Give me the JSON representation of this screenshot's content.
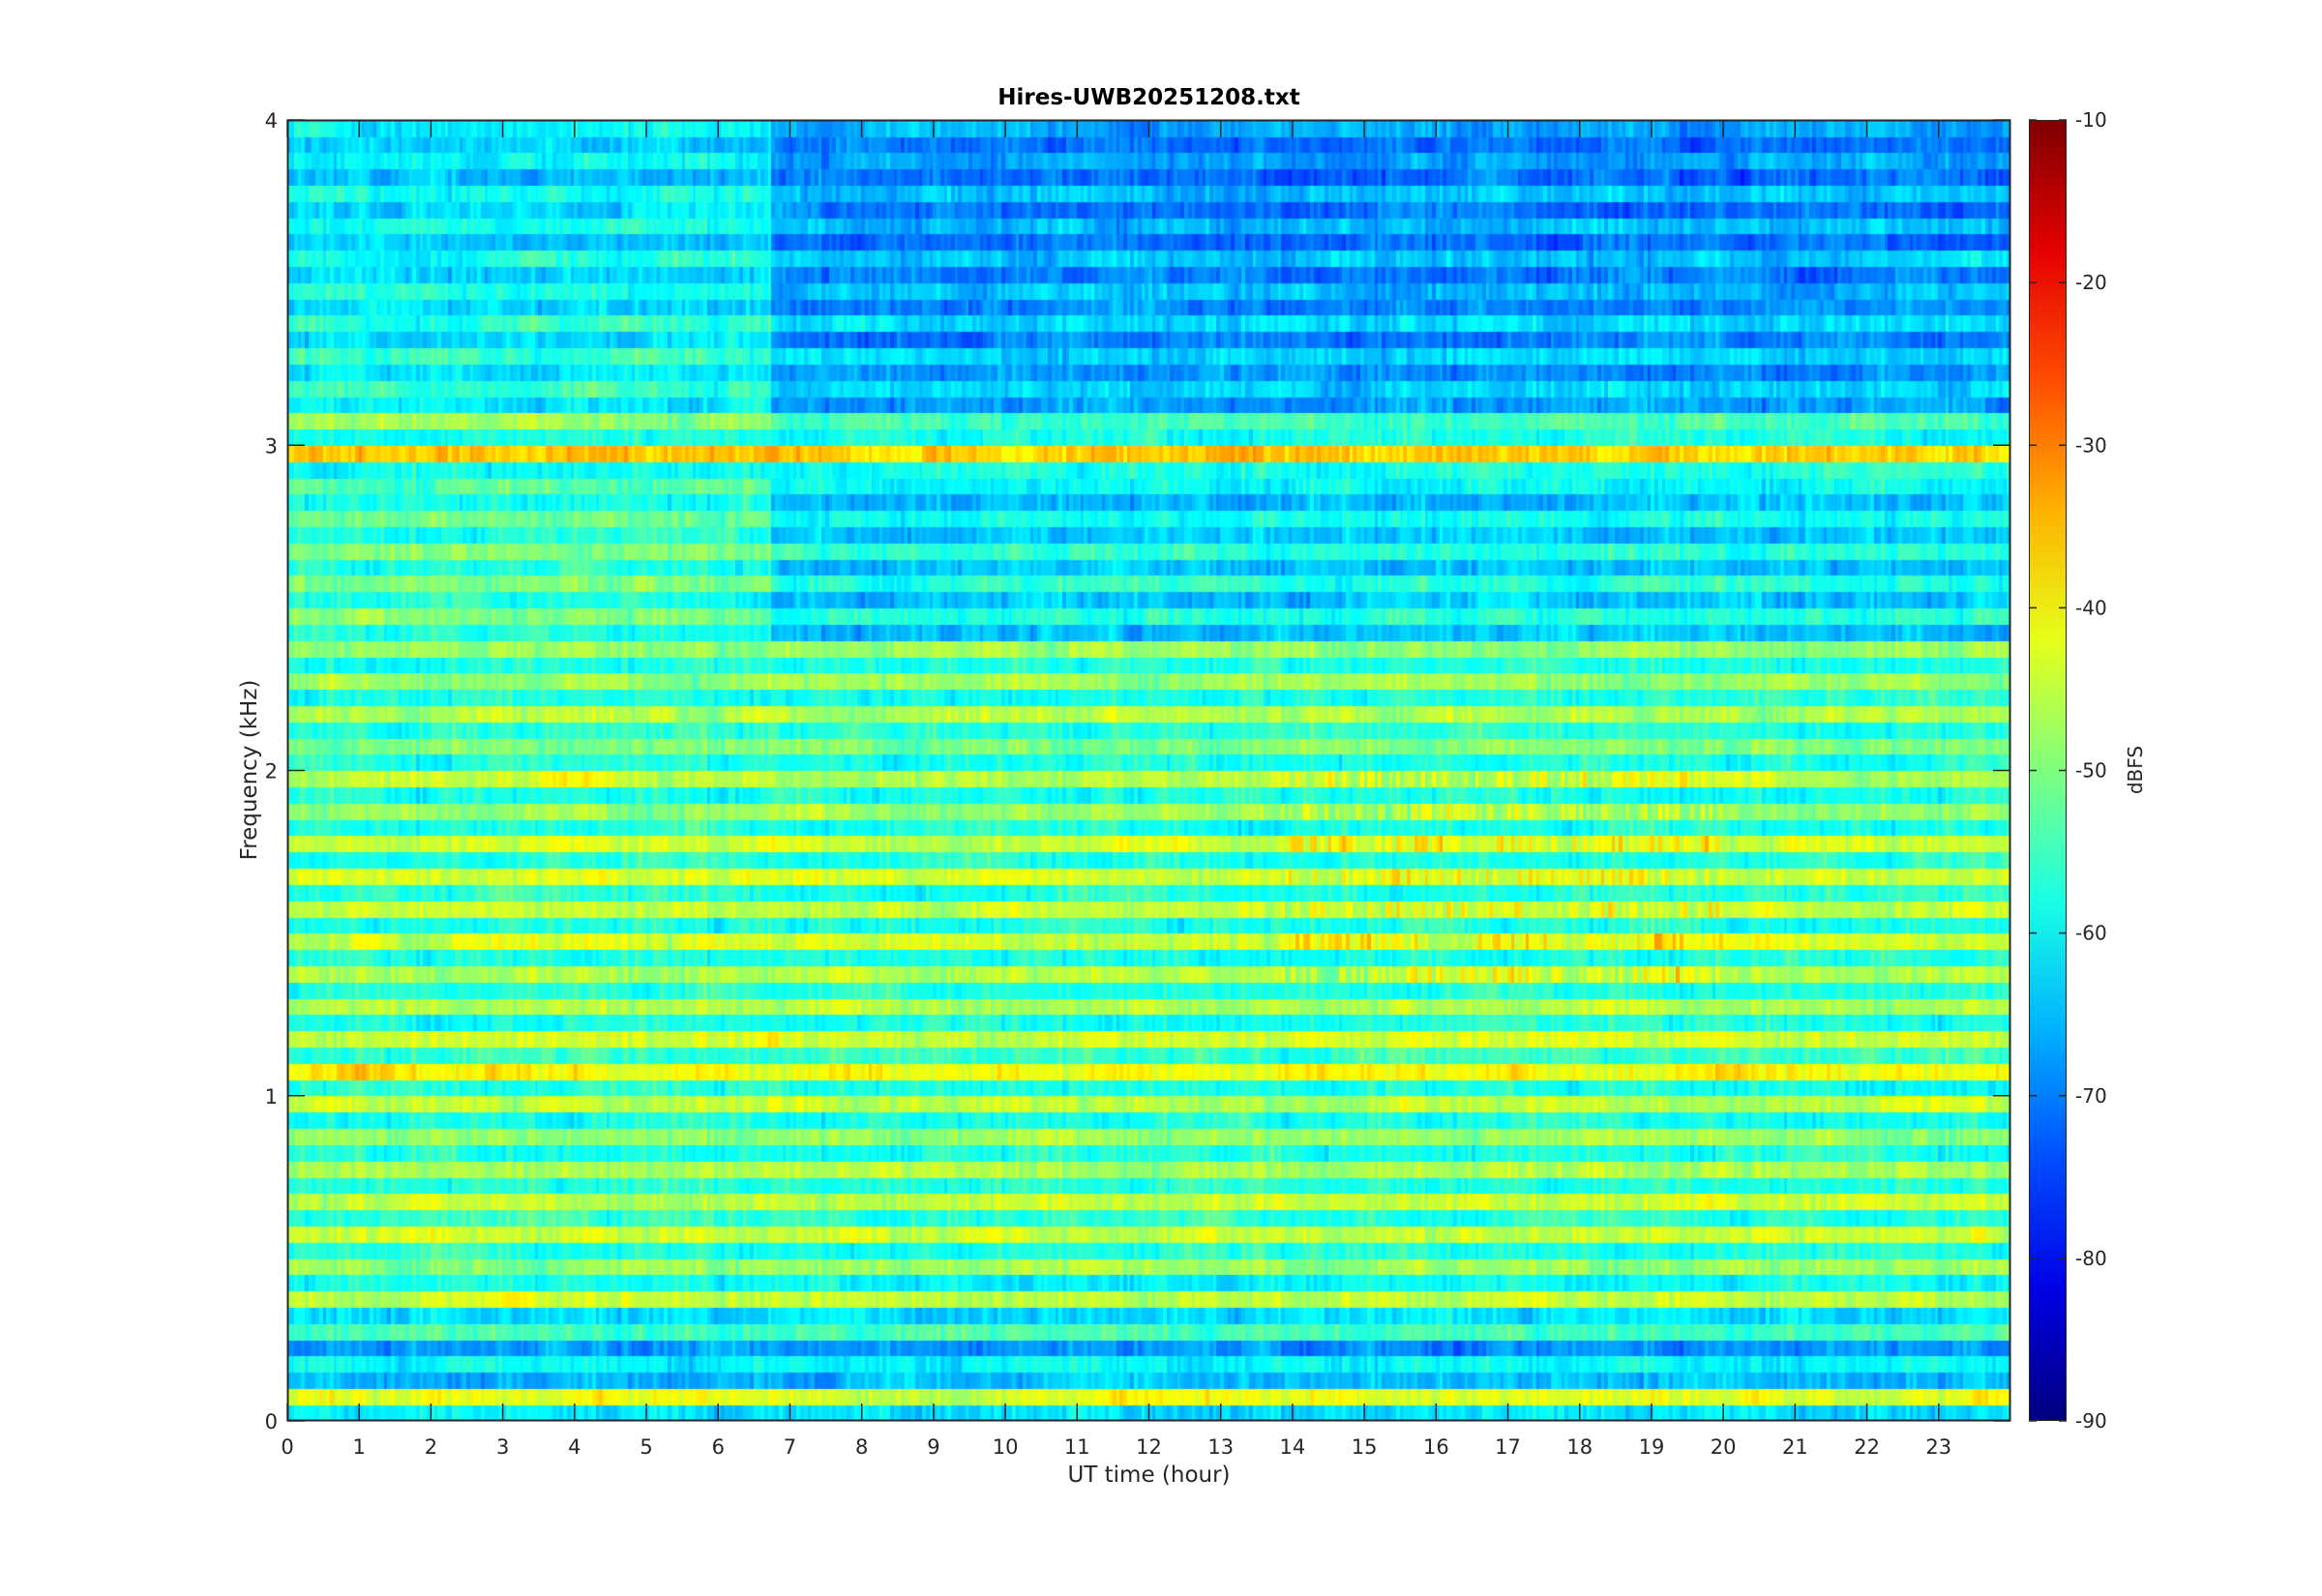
{
  "chart_data": {
    "type": "heatmap",
    "title": "Hires-UWB20251208.txt",
    "xlabel": "UT time (hour)",
    "ylabel": "Frequency (kHz)",
    "xlim": [
      0,
      24
    ],
    "ylim": [
      0,
      4
    ],
    "xticks": [
      0,
      1,
      2,
      3,
      4,
      5,
      6,
      7,
      8,
      9,
      10,
      11,
      12,
      13,
      14,
      15,
      16,
      17,
      18,
      19,
      20,
      21,
      22,
      23
    ],
    "yticks": [
      0,
      1,
      2,
      3,
      4
    ],
    "colorbar": {
      "label": "dBFS",
      "colormap": "jet",
      "clim": [
        -90,
        -10
      ],
      "ticks": [
        -10,
        -20,
        -30,
        -40,
        -50,
        -60,
        -70,
        -80,
        -90
      ]
    },
    "freq_step_khz": 0.05,
    "time_step_hour": 0.05,
    "mean_level_by_freq_dbfs": [
      -62,
      -42,
      -65,
      -60,
      -68,
      -55,
      -62,
      -45,
      -60,
      -48,
      -58,
      -44,
      -56,
      -45,
      -57,
      -46,
      -58,
      -48,
      -58,
      -45,
      -58,
      -40,
      -56,
      -44,
      -58,
      -46,
      -57,
      -46,
      -58,
      -44,
      -58,
      -45,
      -57,
      -44,
      -57,
      -44,
      -58,
      -48,
      -58,
      -46,
      -58,
      -50,
      -57,
      -47,
      -58,
      -48,
      -58,
      -48,
      -60,
      -52,
      -60,
      -52,
      -60,
      -52,
      -60,
      -54,
      -60,
      -55,
      -58,
      -36,
      -58,
      -50,
      -63,
      -58,
      -64,
      -58,
      -65,
      -58,
      -65,
      -60,
      -65,
      -60,
      -66,
      -60,
      -66,
      -60,
      -67,
      -62,
      -66,
      -62
    ],
    "upper_band_shift_after_hour": 6.7,
    "upper_band_shift_dbfs": -5
  }
}
